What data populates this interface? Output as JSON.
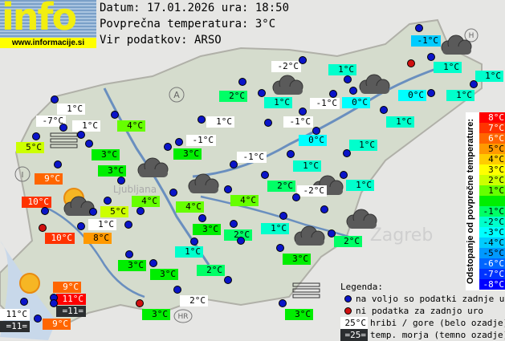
{
  "header": {
    "logo_text": "info",
    "logo_url": "www.informacije.si",
    "date_line": "Datum: 17.01.2026 ura: 18:50",
    "avg_line": "Povprečna temperatura: 3°C",
    "source_line": "Vir podatkov: ARSO"
  },
  "average_temp": 3,
  "colors": {
    "mountain_bg": "#ffffff",
    "sea_bg": "#2b2e30",
    "sea_text": "#ffffff",
    "dot_available": "#0a14c8",
    "dot_missing": "#d01010"
  },
  "scale": {
    "title": "Odstopanje od povprečne temperature:",
    "cells": [
      {
        "label": "8°C",
        "dev": 8,
        "color": "#ff0000",
        "text": "#ffffff"
      },
      {
        "label": "7°C",
        "dev": 7,
        "color": "#ff3300",
        "text": "#ffffff"
      },
      {
        "label": "6°C",
        "dev": 6,
        "color": "#ff6600",
        "text": "#ffffff"
      },
      {
        "label": "5°C",
        "dev": 5,
        "color": "#ff9900",
        "text": "#000000"
      },
      {
        "label": "4°C",
        "dev": 4,
        "color": "#ffcc00",
        "text": "#000000"
      },
      {
        "label": "3°C",
        "dev": 3,
        "color": "#ffff00",
        "text": "#000000"
      },
      {
        "label": "2°C",
        "dev": 2,
        "color": "#ccff00",
        "text": "#000000"
      },
      {
        "label": "1°C",
        "dev": 1,
        "color": "#66ff00",
        "text": "#000000"
      },
      {
        "label": "",
        "dev": 0,
        "color": "#00ee00",
        "text": "#000000"
      },
      {
        "label": "-1°C",
        "dev": -1,
        "color": "#00ff66",
        "text": "#000000"
      },
      {
        "label": "-2°C",
        "dev": -2,
        "color": "#00ffcc",
        "text": "#000000"
      },
      {
        "label": "-3°C",
        "dev": -3,
        "color": "#00ffff",
        "text": "#000000"
      },
      {
        "label": "-4°C",
        "dev": -4,
        "color": "#00ccff",
        "text": "#000000"
      },
      {
        "label": "-5°C",
        "dev": -5,
        "color": "#0099ff",
        "text": "#000000"
      },
      {
        "label": "-6°C",
        "dev": -6,
        "color": "#0066ff",
        "text": "#ffffff"
      },
      {
        "label": "-7°C",
        "dev": -7,
        "color": "#0033ff",
        "text": "#ffffff"
      },
      {
        "label": "-8°C",
        "dev": -8,
        "color": "#0000ff",
        "text": "#ffffff"
      }
    ]
  },
  "stations": [
    {
      "temp": "1°C",
      "kind": "mountain"
    },
    {
      "temp": "-7°C",
      "kind": "mountain"
    },
    {
      "temp": "1°C",
      "kind": "mountain"
    },
    {
      "temp": "5°C",
      "kind": "normal"
    },
    {
      "temp": "4°C",
      "kind": "normal"
    },
    {
      "temp": "3°C",
      "kind": "normal"
    },
    {
      "temp": "3°C",
      "kind": "normal"
    },
    {
      "temp": "9°C",
      "kind": "normal"
    },
    {
      "temp": "2°C",
      "kind": "normal"
    },
    {
      "temp": "1°C",
      "kind": "mountain"
    },
    {
      "temp": "-1°C",
      "kind": "mountain"
    },
    {
      "temp": "3°C",
      "kind": "normal"
    },
    {
      "temp": "-1°C",
      "kind": "mountain"
    },
    {
      "temp": "-1°C",
      "kind": "normal"
    },
    {
      "temp": "1°C",
      "kind": "normal"
    },
    {
      "temp": "1°C",
      "kind": "normal"
    },
    {
      "temp": "-2°C",
      "kind": "mountain"
    },
    {
      "temp": "1°C",
      "kind": "normal"
    },
    {
      "temp": "0°C",
      "kind": "normal"
    },
    {
      "temp": "1°C",
      "kind": "normal"
    },
    {
      "temp": "1°C",
      "kind": "normal"
    },
    {
      "temp": "-1°C",
      "kind": "mountain"
    },
    {
      "temp": "0°C",
      "kind": "normal"
    },
    {
      "temp": "1°C",
      "kind": "normal"
    },
    {
      "temp": "-1°C",
      "kind": "mountain"
    },
    {
      "temp": "0°C",
      "kind": "normal"
    },
    {
      "temp": "1°C",
      "kind": "normal"
    },
    {
      "temp": "1°C",
      "kind": "normal"
    },
    {
      "temp": "2°C",
      "kind": "normal"
    },
    {
      "temp": "-2°C",
      "kind": "mountain"
    },
    {
      "temp": "1°C",
      "kind": "normal"
    },
    {
      "temp": "10°C",
      "kind": "normal"
    },
    {
      "temp": "4°C",
      "kind": "normal"
    },
    {
      "temp": "4°C",
      "kind": "normal"
    },
    {
      "temp": "4°C",
      "kind": "normal"
    },
    {
      "temp": "5°C",
      "kind": "normal"
    },
    {
      "temp": "10°C",
      "kind": "normal"
    },
    {
      "temp": "1°C",
      "kind": "mountain"
    },
    {
      "temp": "8°C",
      "kind": "normal"
    },
    {
      "temp": "3°C",
      "kind": "normal"
    },
    {
      "temp": "2°C",
      "kind": "normal"
    },
    {
      "temp": "1°C",
      "kind": "normal"
    },
    {
      "temp": "3°C",
      "kind": "normal"
    },
    {
      "temp": "1°C",
      "kind": "normal"
    },
    {
      "temp": "3°C",
      "kind": "normal"
    },
    {
      "temp": "3°C",
      "kind": "normal"
    },
    {
      "temp": "2°C",
      "kind": "normal"
    },
    {
      "temp": "2°C",
      "kind": "normal"
    },
    {
      "temp": "9°C",
      "kind": "normal"
    },
    {
      "temp": "11°C",
      "kind": "normal"
    },
    {
      "temp": "=11=",
      "kind": "sea"
    },
    {
      "temp": "11°C",
      "kind": "mountain"
    },
    {
      "temp": "=11=",
      "kind": "sea"
    },
    {
      "temp": "9°C",
      "kind": "normal"
    },
    {
      "temp": "3°C",
      "kind": "normal"
    },
    {
      "temp": "2°C",
      "kind": "mountain"
    },
    {
      "temp": "3°C",
      "kind": "normal"
    }
  ],
  "dots": [
    "available",
    "available",
    "available",
    "available",
    "available",
    "available",
    "available",
    "available",
    "available",
    "available",
    "available",
    "available",
    "available",
    "available",
    "missing",
    "available",
    "available",
    "available",
    "available",
    "available",
    "available",
    "available",
    "available",
    "available",
    "available",
    "available",
    "available",
    "available",
    "available",
    "available",
    "available",
    "available",
    "available",
    "available",
    "available",
    "available",
    "available",
    "available",
    "missing",
    "available",
    "available",
    "available",
    "available",
    "available",
    "available",
    "available",
    "available",
    "available",
    "available",
    "available",
    "available",
    "available",
    "available",
    "available",
    "missing",
    "available",
    "available",
    "available",
    "available"
  ],
  "map_labels": [
    "A",
    "I",
    "H",
    "HR",
    "Ljubljana",
    "Zagreb"
  ],
  "legend": {
    "title": "Legenda:",
    "available": "na voljo so podatki zadnje ure",
    "missing": "ni podatka za zadnjo uro",
    "mountain_sample": "25°C",
    "mountain_text": "hribi / gore (belo ozadje)",
    "sea_sample": "=25=",
    "sea_text": "temp. morja (temno ozadje)"
  },
  "icons": [
    "cloud-icon",
    "sun-icon",
    "partly-cloudy-icon",
    "fog-icon"
  ]
}
